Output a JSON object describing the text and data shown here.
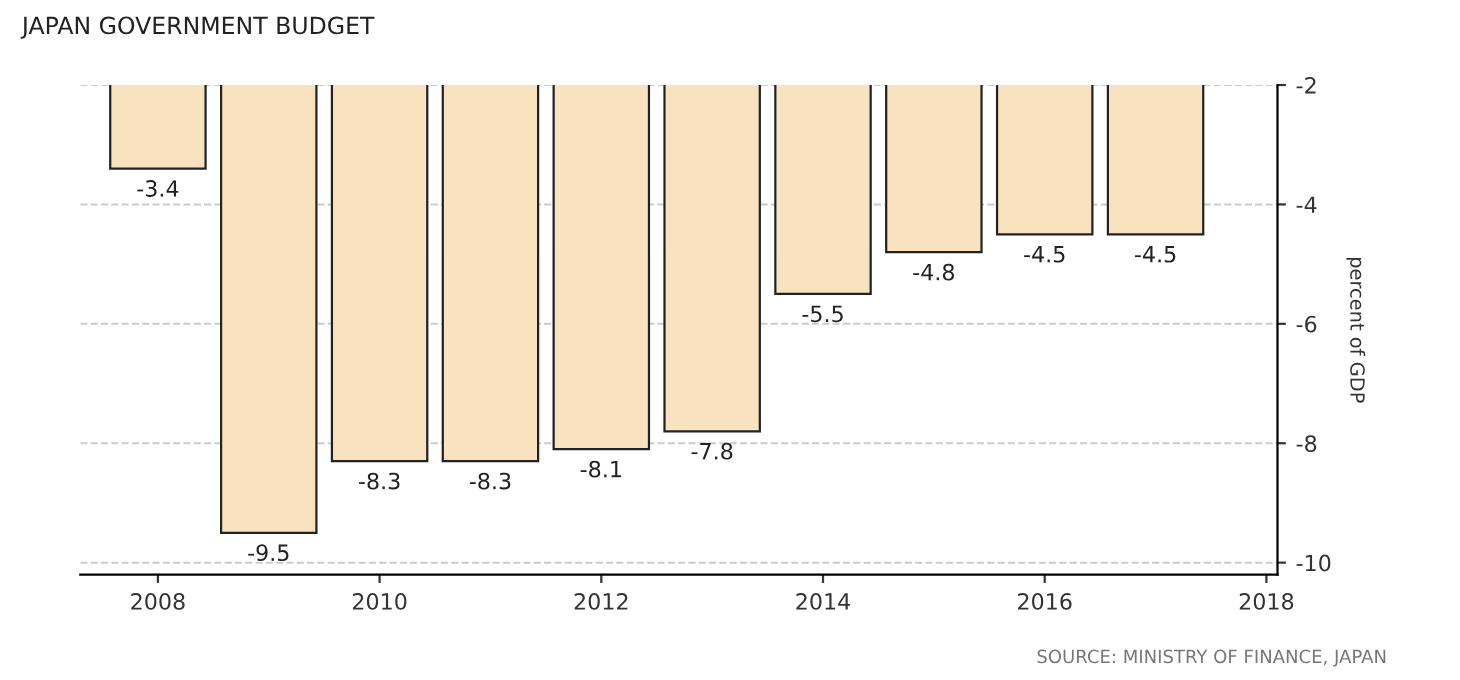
{
  "chart_data": {
    "type": "bar",
    "title": "JAPAN GOVERNMENT BUDGET",
    "ylabel": "percent of GDP",
    "x": [
      2008,
      2009,
      2010,
      2011,
      2012,
      2013,
      2014,
      2015,
      2016,
      2017
    ],
    "values": [
      -3.4,
      -9.5,
      -8.3,
      -8.3,
      -8.1,
      -7.8,
      -5.5,
      -4.8,
      -4.5,
      -4.5
    ],
    "color": "#f8e2c0",
    "xlim": [
      2007.3,
      2018.1
    ],
    "xticks": [
      2008,
      2010,
      2012,
      2014,
      2016,
      2018
    ],
    "ylim": [
      -10.2,
      -2
    ],
    "yticks": [
      -2,
      -4,
      -6,
      -8,
      -10
    ],
    "grid": "y",
    "data_labels": true,
    "annotations": [
      "SOURCE: MINISTRY OF FINANCE, JAPAN"
    ]
  }
}
